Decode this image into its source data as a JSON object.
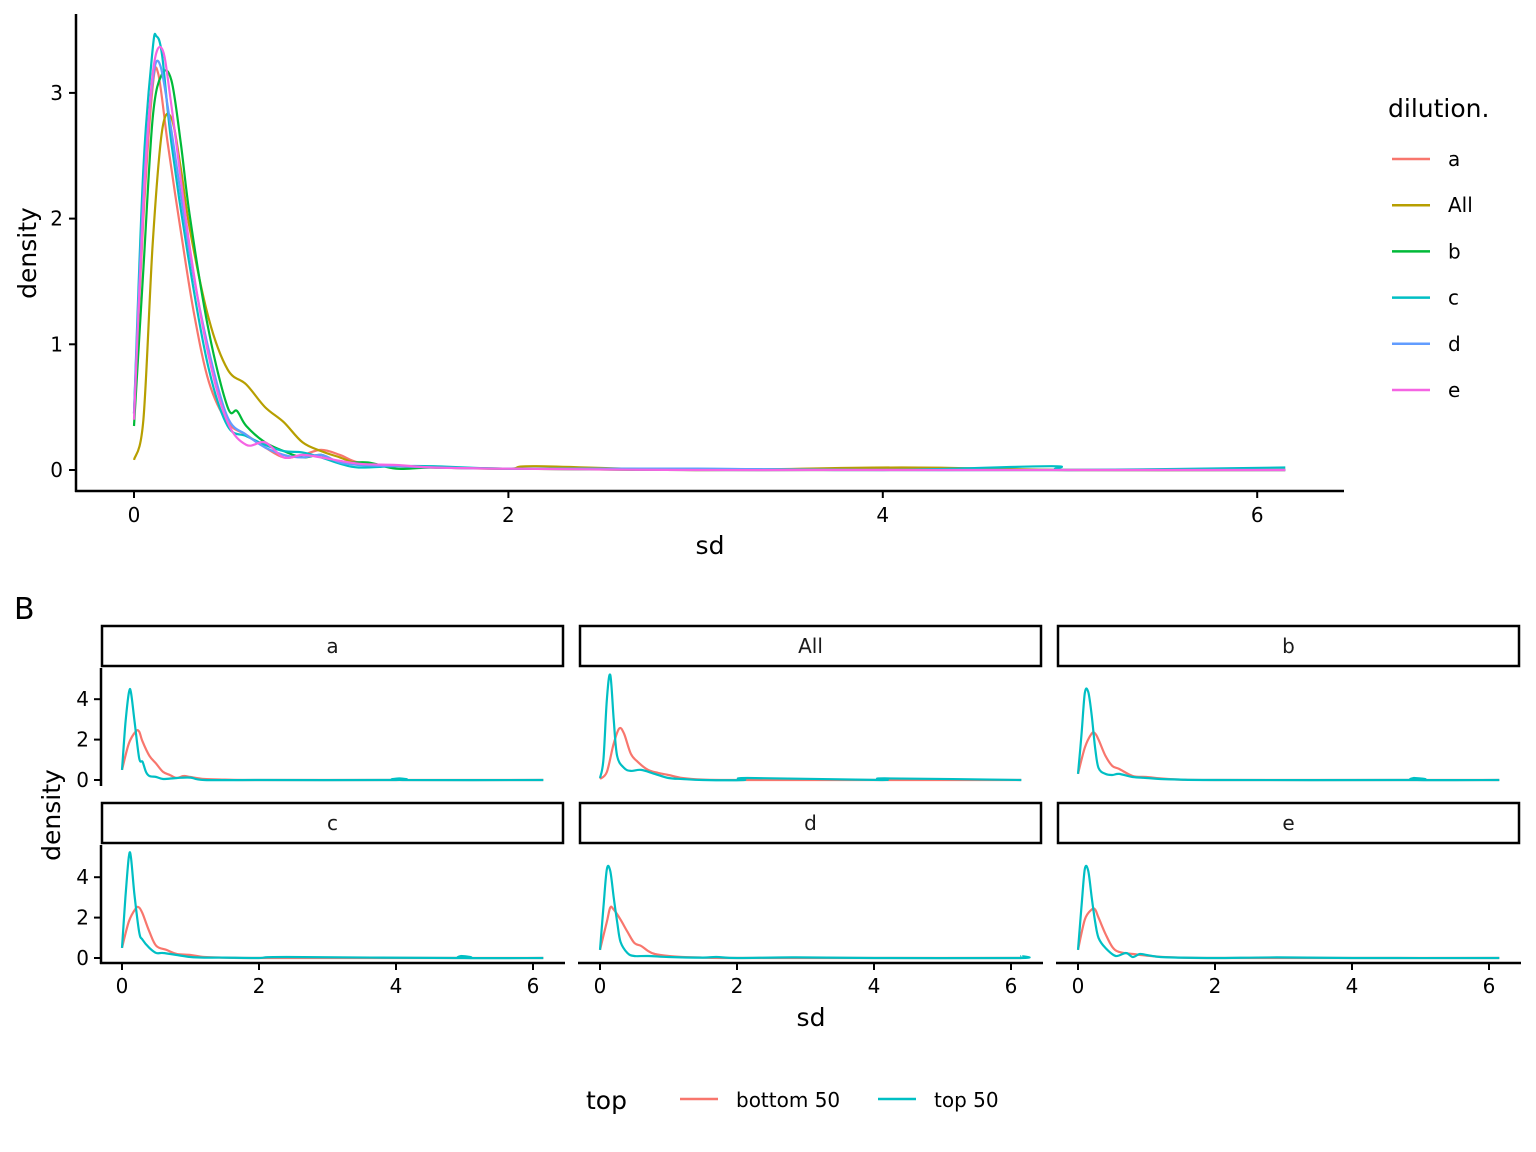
{
  "chart_data": [
    {
      "id": "A",
      "type": "line",
      "subtype": "density",
      "title": "",
      "xlabel": "sd",
      "ylabel": "density",
      "xlim": [
        -0.3,
        6.4
      ],
      "ylim": [
        -0.17,
        3.6
      ],
      "x_ticks": [
        0,
        2,
        4,
        6
      ],
      "y_ticks": [
        0,
        1,
        2,
        3
      ],
      "grid": false,
      "legend": {
        "title": "dilution.",
        "position": "right",
        "entries": [
          {
            "label": "a",
            "color": "#F8766D"
          },
          {
            "label": "All",
            "color": "#B79F00"
          },
          {
            "label": "b",
            "color": "#00BA38"
          },
          {
            "label": "c",
            "color": "#00BFC4"
          },
          {
            "label": "d",
            "color": "#619CFF"
          },
          {
            "label": "e",
            "color": "#F564E3"
          }
        ]
      },
      "series": [
        {
          "name": "a",
          "color": "#F8766D",
          "x": [
            0,
            0.05,
            0.1,
            0.13,
            0.18,
            0.25,
            0.32,
            0.4,
            0.5,
            0.6,
            0.7,
            0.8,
            0.9,
            1.0,
            1.1,
            1.2,
            1.4,
            1.6,
            2.0,
            3.0,
            4.0,
            5.0,
            6.15
          ],
          "y": [
            0.45,
            2.0,
            3.05,
            3.15,
            2.6,
            1.9,
            1.25,
            0.7,
            0.38,
            0.28,
            0.18,
            0.1,
            0.12,
            0.16,
            0.12,
            0.06,
            0.03,
            0.02,
            0.01,
            0.0,
            0.01,
            0.0,
            0.0
          ]
        },
        {
          "name": "All",
          "color": "#B79F00",
          "x": [
            0,
            0.05,
            0.1,
            0.15,
            0.2,
            0.25,
            0.3,
            0.4,
            0.5,
            0.6,
            0.7,
            0.8,
            0.9,
            1.0,
            1.1,
            1.2,
            1.4,
            1.6,
            2.0,
            2.15,
            3.0,
            4.1,
            5.0,
            6.15
          ],
          "y": [
            0.08,
            0.4,
            1.8,
            2.7,
            2.8,
            2.4,
            1.9,
            1.2,
            0.8,
            0.68,
            0.5,
            0.38,
            0.22,
            0.15,
            0.1,
            0.05,
            0.03,
            0.02,
            0.01,
            0.03,
            0.0,
            0.02,
            0.0,
            0.0
          ]
        },
        {
          "name": "b",
          "color": "#00BA38",
          "x": [
            0,
            0.05,
            0.1,
            0.15,
            0.2,
            0.25,
            0.3,
            0.4,
            0.5,
            0.55,
            0.6,
            0.7,
            0.8,
            0.9,
            1.0,
            1.1,
            1.25,
            1.4,
            1.6,
            2.0,
            3.0,
            4.0,
            5.0,
            6.15
          ],
          "y": [
            0.35,
            1.6,
            2.8,
            3.15,
            3.1,
            2.6,
            2.0,
            1.1,
            0.5,
            0.47,
            0.35,
            0.22,
            0.15,
            0.1,
            0.12,
            0.06,
            0.06,
            0.01,
            0.02,
            0.01,
            0.0,
            0.0,
            0.0,
            0.0
          ]
        },
        {
          "name": "c",
          "color": "#00BFC4",
          "x": [
            0,
            0.05,
            0.1,
            0.12,
            0.15,
            0.2,
            0.3,
            0.4,
            0.5,
            0.6,
            0.7,
            0.8,
            0.9,
            1.0,
            1.1,
            1.2,
            1.4,
            1.6,
            2.0,
            3.0,
            4.0,
            4.9,
            5.0,
            6.15
          ],
          "y": [
            0.45,
            2.4,
            3.35,
            3.45,
            3.3,
            2.6,
            1.6,
            0.8,
            0.35,
            0.27,
            0.2,
            0.15,
            0.14,
            0.1,
            0.05,
            0.02,
            0.03,
            0.03,
            0.01,
            0.01,
            0.0,
            0.03,
            0.0,
            0.02
          ]
        },
        {
          "name": "d",
          "color": "#619CFF",
          "x": [
            0,
            0.05,
            0.1,
            0.14,
            0.2,
            0.3,
            0.4,
            0.5,
            0.6,
            0.7,
            0.8,
            0.9,
            1.0,
            1.1,
            1.2,
            1.4,
            1.6,
            2.0,
            3.0,
            4.0,
            5.0,
            6.15
          ],
          "y": [
            0.45,
            2.2,
            3.1,
            3.22,
            2.7,
            1.7,
            0.95,
            0.42,
            0.28,
            0.18,
            0.12,
            0.1,
            0.12,
            0.06,
            0.04,
            0.03,
            0.02,
            0.01,
            0.01,
            0.0,
            0.0,
            0.0
          ]
        },
        {
          "name": "e",
          "color": "#F564E3",
          "x": [
            0,
            0.05,
            0.1,
            0.15,
            0.2,
            0.3,
            0.4,
            0.5,
            0.6,
            0.7,
            0.8,
            0.9,
            1.0,
            1.2,
            1.4,
            1.6,
            2.0,
            3.0,
            4.0,
            5.0,
            6.15
          ],
          "y": [
            0.4,
            2.1,
            3.15,
            3.35,
            2.9,
            1.75,
            0.9,
            0.38,
            0.2,
            0.22,
            0.1,
            0.12,
            0.1,
            0.05,
            0.04,
            0.02,
            0.01,
            0.0,
            0.0,
            0.0,
            0.0
          ]
        }
      ]
    },
    {
      "id": "B",
      "type": "line",
      "subtype": "density-facet",
      "xlabel": "sd",
      "ylabel": "density",
      "x_ticks": [
        0,
        2,
        4,
        6
      ],
      "y_ticks": [
        0,
        2,
        4
      ],
      "xlim": [
        -0.3,
        6.4
      ],
      "ylim": [
        -0.2,
        5.5
      ],
      "grid": false,
      "legend": {
        "title": "top",
        "position": "bottom",
        "entries": [
          {
            "label": "bottom 50",
            "color": "#F8766D"
          },
          {
            "label": "top 50",
            "color": "#00BFC4"
          }
        ]
      },
      "facets": [
        {
          "label": "a",
          "series": [
            {
              "name": "bottom 50",
              "x": [
                0,
                0.1,
                0.2,
                0.25,
                0.3,
                0.4,
                0.5,
                0.6,
                0.7,
                0.8,
                0.9,
                1.0,
                1.2,
                1.5,
                2.0,
                4.0,
                6.15
              ],
              "y": [
                0.5,
                1.8,
                2.4,
                2.4,
                1.9,
                1.2,
                0.8,
                0.4,
                0.25,
                0.1,
                0.2,
                0.15,
                0.05,
                0.02,
                0.0,
                0.0,
                0.0
              ]
            },
            {
              "name": "top 50",
              "x": [
                0,
                0.05,
                0.1,
                0.13,
                0.18,
                0.25,
                0.3,
                0.35,
                0.4,
                0.5,
                0.6,
                0.8,
                1.0,
                1.2,
                2.0,
                4.0,
                4.05,
                4.1,
                6.15
              ],
              "y": [
                0.5,
                2.8,
                4.3,
                4.35,
                3.0,
                1.1,
                0.9,
                0.4,
                0.2,
                0.15,
                0.05,
                0.1,
                0.12,
                0.0,
                0.0,
                0.0,
                0.08,
                0.0,
                0.0
              ]
            }
          ]
        },
        {
          "label": "All",
          "series": [
            {
              "name": "bottom 50",
              "x": [
                0,
                0.1,
                0.2,
                0.28,
                0.35,
                0.45,
                0.55,
                0.7,
                0.85,
                1.0,
                1.2,
                1.5,
                2.0,
                4.0,
                6.15
              ],
              "y": [
                0.05,
                0.4,
                1.8,
                2.55,
                2.3,
                1.3,
                0.9,
                0.5,
                0.35,
                0.25,
                0.1,
                0.02,
                0.0,
                0.0,
                0.0
              ]
            },
            {
              "name": "top 50",
              "x": [
                0,
                0.05,
                0.1,
                0.15,
                0.2,
                0.25,
                0.35,
                0.45,
                0.6,
                0.8,
                1.0,
                1.2,
                1.5,
                2.1,
                2.15,
                4.1,
                4.15,
                6.15
              ],
              "y": [
                0.1,
                1.0,
                4.0,
                5.2,
                3.0,
                1.2,
                0.6,
                0.45,
                0.5,
                0.3,
                0.1,
                0.05,
                0.0,
                0.0,
                0.1,
                0.0,
                0.08,
                0.0
              ]
            }
          ]
        },
        {
          "label": "b",
          "series": [
            {
              "name": "bottom 50",
              "x": [
                0,
                0.1,
                0.2,
                0.25,
                0.3,
                0.4,
                0.5,
                0.6,
                0.8,
                1.0,
                1.2,
                1.5,
                2.0,
                4.0,
                6.15
              ],
              "y": [
                0.3,
                1.6,
                2.3,
                2.3,
                2.0,
                1.2,
                0.7,
                0.55,
                0.2,
                0.15,
                0.08,
                0.02,
                0.0,
                0.0,
                0.0
              ]
            },
            {
              "name": "top 50",
              "x": [
                0,
                0.05,
                0.1,
                0.15,
                0.2,
                0.25,
                0.3,
                0.4,
                0.5,
                0.6,
                0.8,
                1.0,
                1.2,
                1.5,
                2.0,
                4.85,
                4.9,
                4.95,
                6.15
              ],
              "y": [
                0.3,
                2.2,
                4.3,
                4.35,
                3.2,
                1.6,
                0.6,
                0.3,
                0.25,
                0.3,
                0.15,
                0.1,
                0.05,
                0.02,
                0.0,
                0.0,
                0.1,
                0.0,
                0.0
              ]
            }
          ]
        },
        {
          "label": "c",
          "series": [
            {
              "name": "bottom 50",
              "x": [
                0,
                0.1,
                0.2,
                0.25,
                0.3,
                0.4,
                0.5,
                0.65,
                0.8,
                1.0,
                1.2,
                1.5,
                2.0,
                4.0,
                6.15
              ],
              "y": [
                0.5,
                1.8,
                2.45,
                2.5,
                2.2,
                1.3,
                0.6,
                0.4,
                0.2,
                0.15,
                0.05,
                0.02,
                0.0,
                0.0,
                0.0
              ]
            },
            {
              "name": "top 50",
              "x": [
                0,
                0.05,
                0.1,
                0.13,
                0.18,
                0.25,
                0.3,
                0.4,
                0.5,
                0.6,
                0.8,
                1.0,
                1.2,
                1.5,
                2.0,
                2.4,
                4.9,
                4.95,
                5.0,
                6.15
              ],
              "y": [
                0.5,
                3.0,
                5.0,
                5.0,
                3.2,
                1.3,
                0.9,
                0.5,
                0.25,
                0.25,
                0.15,
                0.05,
                0.02,
                0.02,
                0.0,
                0.05,
                0.0,
                0.1,
                0.0,
                0.0
              ]
            }
          ]
        },
        {
          "label": "d",
          "series": [
            {
              "name": "bottom 50",
              "x": [
                0,
                0.1,
                0.15,
                0.2,
                0.3,
                0.4,
                0.5,
                0.6,
                0.7,
                0.8,
                1.0,
                1.2,
                1.5,
                2.0,
                4.0,
                6.15
              ],
              "y": [
                0.4,
                1.8,
                2.5,
                2.4,
                1.9,
                1.3,
                0.75,
                0.6,
                0.35,
                0.2,
                0.1,
                0.05,
                0.02,
                0.0,
                0.0,
                0.0
              ]
            },
            {
              "name": "top 50",
              "x": [
                0,
                0.05,
                0.1,
                0.15,
                0.2,
                0.25,
                0.3,
                0.4,
                0.5,
                0.7,
                1.0,
                1.5,
                1.7,
                2.0,
                2.8,
                4.0,
                6.1,
                6.15
              ],
              "y": [
                0.4,
                2.5,
                4.4,
                4.3,
                3.0,
                1.8,
                0.8,
                0.25,
                0.1,
                0.1,
                0.05,
                0.02,
                0.05,
                0.0,
                0.03,
                0.0,
                0.0,
                0.1
              ]
            }
          ]
        },
        {
          "label": "e",
          "series": [
            {
              "name": "bottom 50",
              "x": [
                0,
                0.1,
                0.2,
                0.25,
                0.3,
                0.4,
                0.5,
                0.6,
                0.8,
                1.0,
                1.2,
                1.5,
                2.0,
                4.0,
                6.15
              ],
              "y": [
                0.4,
                1.9,
                2.4,
                2.4,
                2.0,
                1.2,
                0.55,
                0.3,
                0.2,
                0.12,
                0.06,
                0.02,
                0.0,
                0.0,
                0.0
              ]
            },
            {
              "name": "top 50",
              "x": [
                0,
                0.05,
                0.1,
                0.15,
                0.2,
                0.25,
                0.3,
                0.4,
                0.55,
                0.7,
                0.8,
                0.9,
                1.0,
                1.2,
                1.5,
                2.0,
                2.9,
                4.0,
                6.15
              ],
              "y": [
                0.4,
                2.5,
                4.4,
                4.3,
                3.0,
                1.8,
                1.0,
                0.5,
                0.1,
                0.25,
                0.05,
                0.2,
                0.15,
                0.05,
                0.02,
                0.0,
                0.03,
                0.0,
                0.0
              ]
            }
          ]
        }
      ]
    }
  ],
  "figure": {
    "panel_b_tag": "B"
  }
}
